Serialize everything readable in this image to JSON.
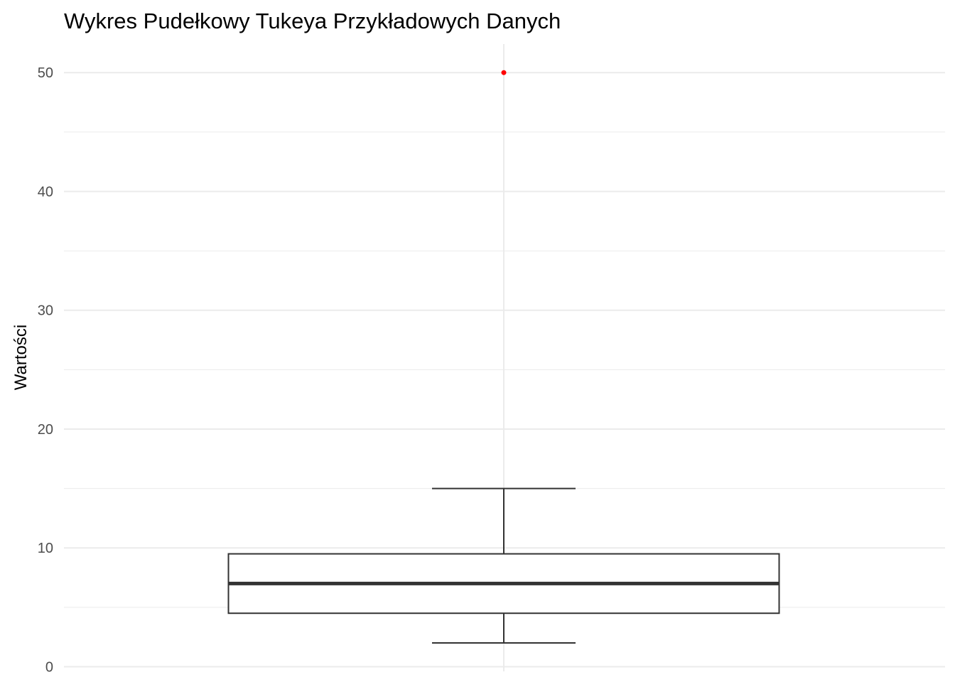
{
  "chart_data": {
    "type": "boxplot",
    "title": "Wykres Pudełkowy Tukeya Przykładowych Danych",
    "xlabel": "",
    "ylabel": "Wartości",
    "ylim": [
      0,
      50
    ],
    "y_ticks": [
      0,
      10,
      20,
      30,
      40,
      50
    ],
    "grid": true,
    "legend": "none",
    "box": {
      "lower_whisker": 2,
      "q1": 4.5,
      "median": 7,
      "q3": 9.5,
      "upper_whisker": 15
    },
    "outliers": [
      50
    ],
    "colors": {
      "outlier": "#ff0000",
      "box_line": "#333333",
      "grid": "#ebebeb"
    }
  }
}
